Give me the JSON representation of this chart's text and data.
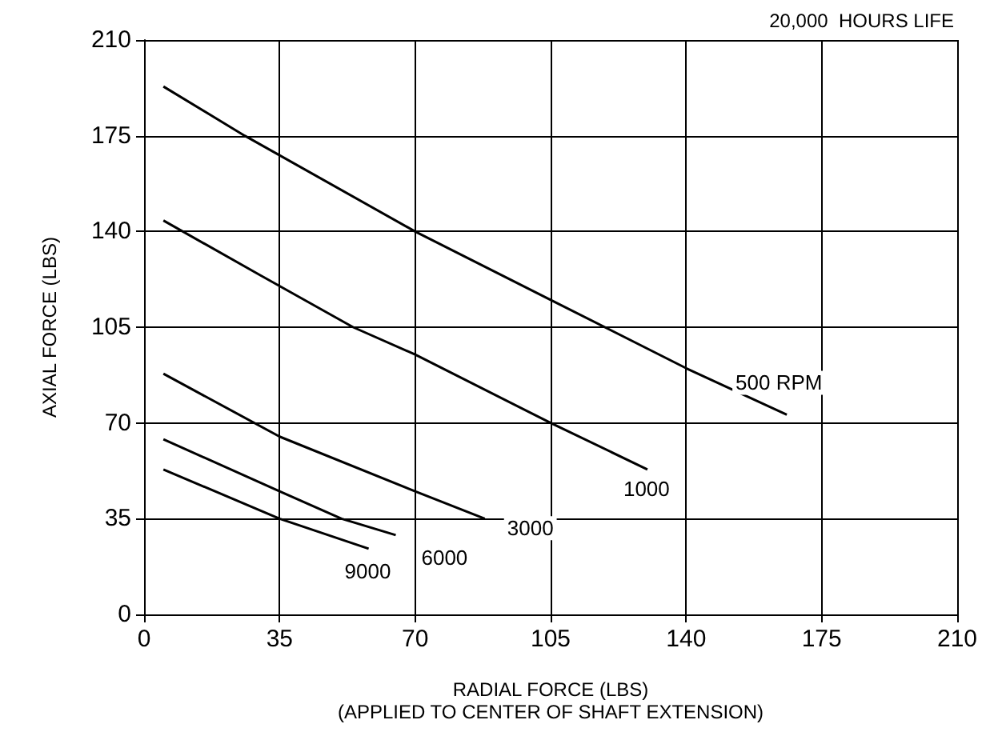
{
  "chart_data": {
    "type": "line",
    "title": "20,000  HOURS LIFE",
    "xlabel": "RADIAL FORCE (LBS)\n(APPLIED TO CENTER OF SHAFT EXTENSION)",
    "ylabel": "AXIAL FORCE (LBS)",
    "xlim": [
      0,
      210
    ],
    "xticks": [
      0,
      35,
      70,
      105,
      140,
      175,
      210
    ],
    "ylim": [
      0,
      210
    ],
    "yticks": [
      0,
      35,
      70,
      105,
      140,
      175,
      210
    ],
    "grid": true,
    "legend": false,
    "marker": "none",
    "line_style": "solid",
    "series": [
      {
        "name": "500 RPM",
        "color": "#000000",
        "x": [
          5,
          26,
          70,
          105,
          140,
          166
        ],
        "values": [
          193,
          175,
          140,
          115,
          90,
          73
        ]
      },
      {
        "name": "1000",
        "color": "#000000",
        "x": [
          5,
          30,
          54,
          70,
          105,
          130
        ],
        "values": [
          144,
          124,
          105,
          95,
          70,
          53
        ]
      },
      {
        "name": "3000",
        "color": "#000000",
        "x": [
          5,
          35,
          70,
          88
        ],
        "values": [
          88,
          65,
          45,
          35
        ]
      },
      {
        "name": "6000",
        "color": "#000000",
        "x": [
          5,
          35,
          51,
          65
        ],
        "values": [
          64,
          45,
          35,
          29
        ]
      },
      {
        "name": "9000",
        "color": "#000000",
        "x": [
          5,
          35,
          58
        ],
        "values": [
          53,
          35,
          24
        ]
      }
    ]
  }
}
